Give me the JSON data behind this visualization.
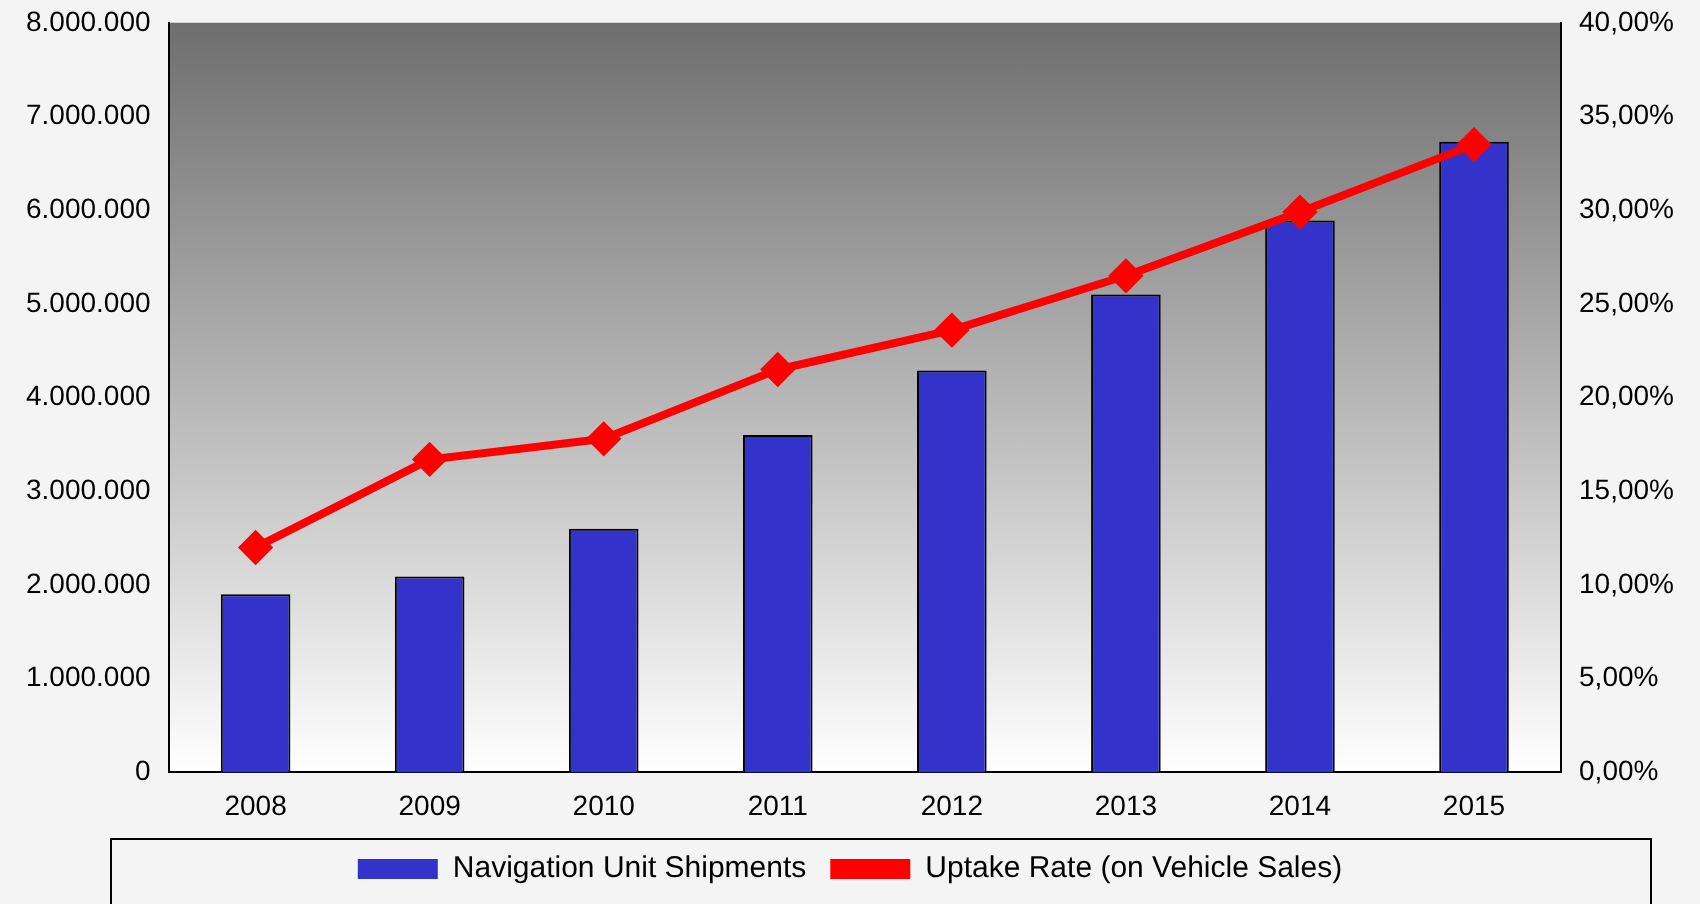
{
  "chart_data": {
    "type": "bar",
    "categories": [
      "2008",
      "2009",
      "2010",
      "2011",
      "2012",
      "2013",
      "2014",
      "2015"
    ],
    "series": [
      {
        "name": "Navigation Unit Shipments",
        "color": "#3333cc",
        "values": [
          1900000,
          2090000,
          2600000,
          3600000,
          4290000,
          5100000,
          5890000,
          6730000
        ]
      },
      {
        "name": "Uptake Rate (on Vehicle Sales)",
        "type": "line",
        "axis": "y2",
        "color": "#ff0000",
        "values": [
          12,
          16.7,
          17.8,
          21.5,
          23.6,
          26.5,
          29.9,
          33.5
        ]
      }
    ],
    "ylim": [
      0,
      8000000
    ],
    "yticks": [
      0,
      {
        "value": 1000000,
        "label": "1.000.000"
      },
      {
        "value": 2000000,
        "label": "2.000.000"
      },
      {
        "value": 3000000,
        "label": "3.000.000"
      },
      {
        "value": 4000000,
        "label": "4.000.000"
      },
      {
        "value": 5000000,
        "label": "5.000.000"
      },
      {
        "value": 6000000,
        "label": "6.000.000"
      },
      {
        "value": 7000000,
        "label": "7.000.000"
      },
      {
        "value": 8000000,
        "label": "8.000.000"
      }
    ],
    "y2lim": [
      0,
      40
    ],
    "y2ticks": [
      {
        "value": 0,
        "label": "0,00%"
      },
      {
        "value": 5,
        "label": "5,00%"
      },
      {
        "value": 10,
        "label": "10,00%"
      },
      {
        "value": 15,
        "label": "15,00%"
      },
      {
        "value": 20,
        "label": "20,00%"
      },
      {
        "value": 25,
        "label": "25,00%"
      },
      {
        "value": 30,
        "label": "30,00%"
      },
      {
        "value": 35,
        "label": "35,00%"
      },
      {
        "value": 40,
        "label": "40,00%"
      }
    ],
    "legend": "bottom",
    "marker": "diamond",
    "grid": false
  }
}
